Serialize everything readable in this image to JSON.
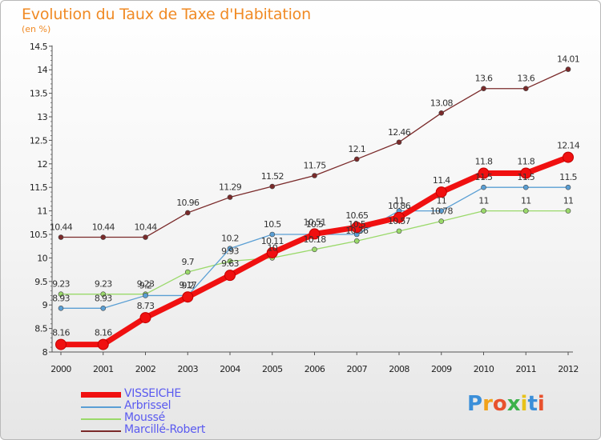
{
  "title": "Evolution du Taux de Taxe d'Habitation",
  "subtitle": "(en %)",
  "logo": {
    "text": "Proxiti",
    "colors": [
      "#3b8fd9",
      "#f2a21a",
      "#e8512d",
      "#3bb24a",
      "#e8c21a",
      "#3b8fd9",
      "#e8512d"
    ]
  },
  "chart_data": {
    "type": "line",
    "x": [
      2000,
      2001,
      2002,
      2003,
      2004,
      2005,
      2006,
      2007,
      2008,
      2009,
      2010,
      2011,
      2012
    ],
    "ylim": [
      8,
      14.5
    ],
    "yticks": [
      "8",
      "8.5",
      "9",
      "9.5",
      "10",
      "10.5",
      "11",
      "11.5",
      "12",
      "12.5",
      "13",
      "13.5",
      "14",
      "14.5"
    ],
    "grid": false,
    "legend_position": "bottom-left",
    "series": [
      {
        "name": "Marcillé-Robert",
        "color": "#7a2a2a",
        "values": [
          10.44,
          10.44,
          10.44,
          10.96,
          11.29,
          11.52,
          11.75,
          12.1,
          12.46,
          13.08,
          13.6,
          13.6,
          14.01
        ]
      },
      {
        "name": "Moussé",
        "color": "#9ad96a",
        "values": [
          9.23,
          9.23,
          9.23,
          9.7,
          9.93,
          10,
          10.18,
          10.36,
          10.57,
          10.78,
          11,
          11,
          11
        ]
      },
      {
        "name": "Arbrissel",
        "color": "#5a9fd4",
        "values": [
          8.93,
          8.93,
          9.2,
          9.2,
          10.2,
          10.5,
          10.5,
          10.5,
          11,
          11,
          11.5,
          11.5,
          11.5
        ]
      },
      {
        "name": "VISSEICHE",
        "color": "#f01010",
        "values": [
          8.16,
          8.16,
          8.73,
          9.17,
          9.63,
          10.11,
          10.51,
          10.65,
          10.86,
          11.4,
          11.8,
          11.8,
          12.14
        ]
      }
    ]
  }
}
